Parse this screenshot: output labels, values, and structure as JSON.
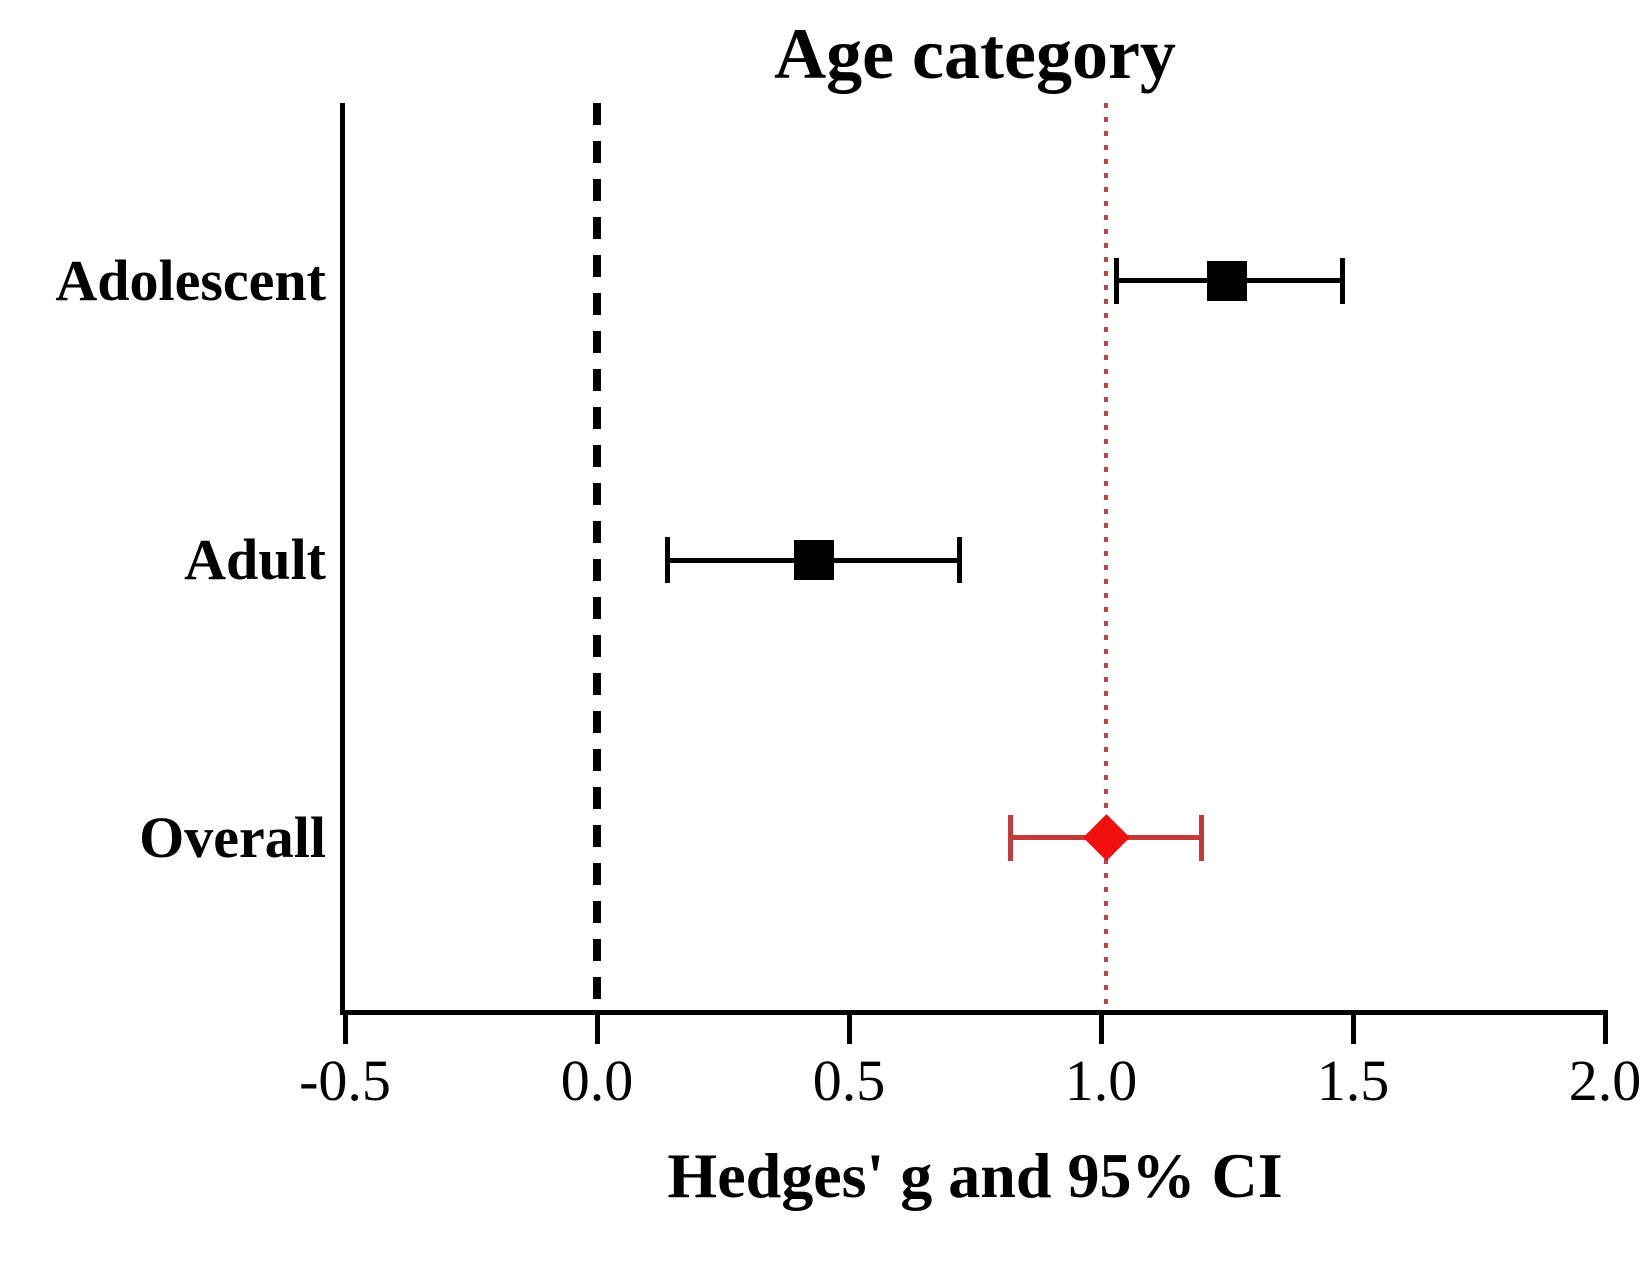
{
  "chart_data": {
    "type": "scatter",
    "subtype": "forest-plot",
    "title": "Age category",
    "xlabel": "Hedges' g and 95% CI",
    "xlim": [
      -0.5,
      2.0
    ],
    "x_tick_values": [
      -0.5,
      0.0,
      0.5,
      1.0,
      1.5,
      2.0
    ],
    "x_tick_labels": [
      "-0.5",
      "0.0",
      "0.5",
      "1.0",
      "1.5",
      "2.0"
    ],
    "grid": false,
    "legend": "none",
    "reference_lines": [
      {
        "name": "null-effect-line",
        "x": 0.0,
        "style": "dashed",
        "color": "#000000"
      },
      {
        "name": "overall-estimate-line",
        "x": 1.01,
        "style": "dotted",
        "color": "#bb4444"
      }
    ],
    "rows": [
      {
        "label": "Adolescent",
        "g": 1.25,
        "ci_low": 1.03,
        "ci_high": 1.48,
        "marker": "square",
        "marker_color": "#000000",
        "line_color": "#000000"
      },
      {
        "label": "Adult",
        "g": 0.43,
        "ci_low": 0.14,
        "ci_high": 0.72,
        "marker": "square",
        "marker_color": "#000000",
        "line_color": "#000000"
      },
      {
        "label": "Overall",
        "g": 1.01,
        "ci_low": 0.82,
        "ci_high": 1.2,
        "marker": "diamond",
        "marker_color": "#f2100e",
        "line_color": "#c23b38"
      }
    ]
  },
  "colors": {
    "axis": "#000000",
    "null_line": "#000000",
    "overall_reference_red": "#bb4444",
    "overall_marker_red": "#f2100e",
    "overall_ci_red": "#c23b38"
  }
}
